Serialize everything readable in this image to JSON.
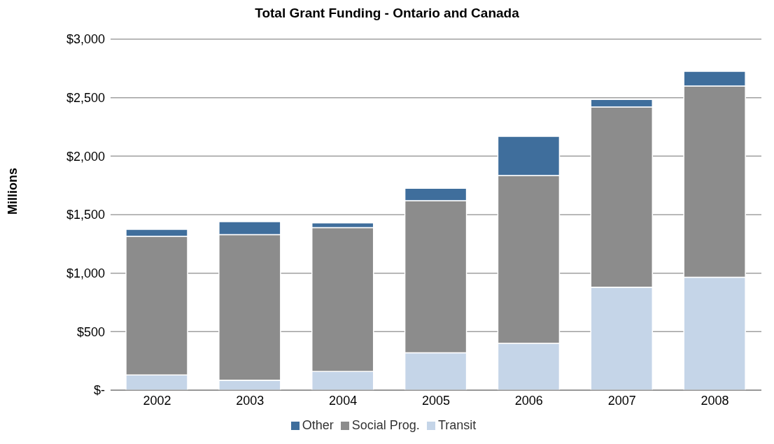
{
  "chart_data": {
    "type": "bar",
    "title": "Total Grant Funding - Ontario and Canada",
    "ylabel": "Millions",
    "categories": [
      "2002",
      "2003",
      "2004",
      "2005",
      "2006",
      "2007",
      "2008"
    ],
    "stacked": true,
    "series": [
      {
        "name": "Transit",
        "color": "#c5d5e8",
        "values": [
          130,
          85,
          160,
          320,
          400,
          880,
          965
        ]
      },
      {
        "name": "Social Prog.",
        "color": "#8c8c8c",
        "values": [
          1185,
          1245,
          1230,
          1300,
          1435,
          1540,
          1635
        ]
      },
      {
        "name": "Other",
        "color": "#3f6e9c",
        "values": [
          60,
          110,
          40,
          105,
          335,
          65,
          125
        ]
      }
    ],
    "ylim": [
      0,
      3000
    ],
    "yticks": [
      {
        "value": 0,
        "label": "$-"
      },
      {
        "value": 500,
        "label": "$500"
      },
      {
        "value": 1000,
        "label": "$1,000"
      },
      {
        "value": 1500,
        "label": "$1,500"
      },
      {
        "value": 2000,
        "label": "$2,000"
      },
      {
        "value": 2500,
        "label": "$2,500"
      },
      {
        "value": 3000,
        "label": "$3,000"
      }
    ],
    "grid": "y",
    "legend": "bottom"
  }
}
